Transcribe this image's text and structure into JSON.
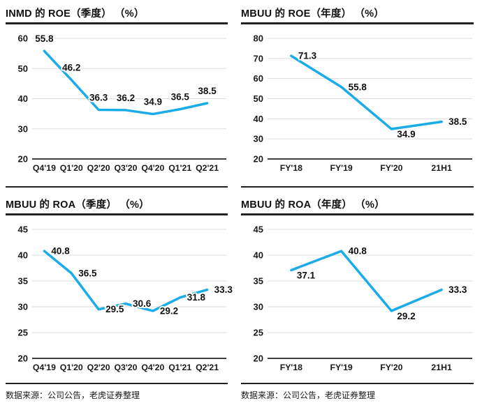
{
  "page": {
    "background": "#ffffff"
  },
  "style": {
    "line_color": "#1AACE8",
    "grid_color": "#DCDCDC",
    "axis_color": "#3F3F3F",
    "rule_color": "#222222",
    "text_color": "#1A1A1A"
  },
  "sources": {
    "left": "数据来源：公司公告，老虎证券整理",
    "right": "数据来源：公司公告，老虎证券整理"
  },
  "chart_data": [
    {
      "id": "inmd-roe-quarterly",
      "type": "line",
      "title": "INMD 的 ROE（季度） （%）",
      "categories": [
        "Q4'19",
        "Q1'20",
        "Q2'20",
        "Q3'20",
        "Q4'20",
        "Q1'21",
        "Q2'21"
      ],
      "values": [
        55.8,
        46.2,
        36.3,
        36.2,
        34.9,
        36.5,
        38.5
      ],
      "data_labels": [
        "55.8",
        "46.2",
        "36.3",
        "36.2",
        "34.9",
        "36.5",
        "38.5"
      ],
      "label_positions": [
        "above",
        "above",
        "above",
        "above",
        "above",
        "above",
        "above"
      ],
      "ylim": [
        20,
        60
      ],
      "yticks": [
        60,
        50,
        40,
        30,
        20
      ],
      "xlabel": "",
      "ylabel": "",
      "grid": true,
      "legend": "none"
    },
    {
      "id": "mbuu-roe-annual",
      "type": "line",
      "title": "MBUU 的 ROE（年度） （%）",
      "categories": [
        "FY'18",
        "FY'19",
        "FY'20",
        "21H1"
      ],
      "values": [
        71.3,
        55.8,
        34.9,
        38.5
      ],
      "data_labels": [
        "71.3",
        "55.8",
        "34.9",
        "38.5"
      ],
      "label_positions": [
        "right",
        "right",
        "below-right",
        "right"
      ],
      "ylim": [
        20,
        80
      ],
      "yticks": [
        80,
        70,
        60,
        50,
        40,
        30,
        20
      ],
      "xlabel": "",
      "ylabel": "",
      "grid": true,
      "legend": "none"
    },
    {
      "id": "mbuu-roa-quarterly",
      "type": "line",
      "title": "MBUU 的 ROA（季度） （%）",
      "categories": [
        "Q4'19",
        "Q1'20",
        "Q2'20",
        "Q3'20",
        "Q4'20",
        "Q1'21",
        "Q2'21"
      ],
      "values": [
        40.8,
        36.5,
        29.5,
        30.6,
        29.2,
        31.8,
        33.3
      ],
      "data_labels": [
        "40.8",
        "36.5",
        "29.5",
        "30.6",
        "29.2",
        "31.8",
        "33.3"
      ],
      "label_positions": [
        "right",
        "right",
        "right",
        "right",
        "right",
        "right",
        "right"
      ],
      "ylim": [
        20,
        45
      ],
      "yticks": [
        45,
        40,
        35,
        30,
        25,
        20
      ],
      "xlabel": "",
      "ylabel": "",
      "grid": true,
      "legend": "none"
    },
    {
      "id": "mbuu-roa-annual",
      "type": "line",
      "title": "MBUU 的 ROA（年度） （%）",
      "categories": [
        "FY'18",
        "FY'19",
        "FY'20",
        "21H1"
      ],
      "values": [
        37.1,
        40.8,
        29.2,
        33.3
      ],
      "data_labels": [
        "37.1",
        "40.8",
        "29.2",
        "33.3"
      ],
      "label_positions": [
        "below-right",
        "right",
        "below-right",
        "right"
      ],
      "ylim": [
        20,
        45
      ],
      "yticks": [
        45,
        40,
        35,
        30,
        25,
        20
      ],
      "xlabel": "",
      "ylabel": "",
      "grid": true,
      "legend": "none"
    }
  ]
}
